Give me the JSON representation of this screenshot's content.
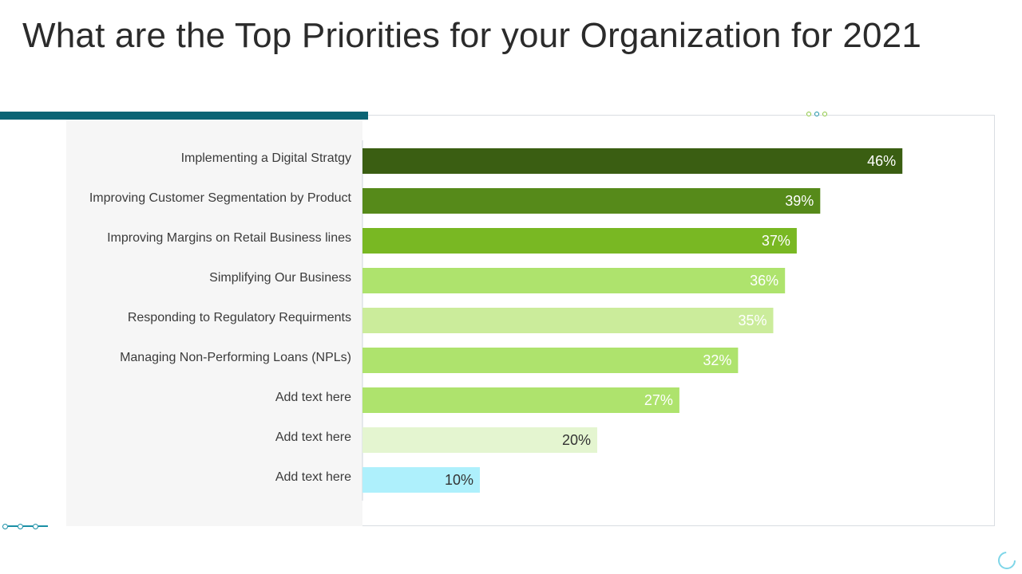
{
  "page": {
    "title": "What are the Top Priorities for your Organization for 2021"
  },
  "colors": {
    "accent": "#0b6474",
    "top_dots": [
      "#8cc63f",
      "#1a8fa6",
      "#8cc63f"
    ],
    "bottom_dots": "#1a8fa6"
  },
  "chart_data": {
    "type": "bar",
    "orientation": "horizontal",
    "categories": [
      "Implementing a Digital Stratgy",
      "Improving Customer Segmentation by Product",
      "Improving Margins on Retail Business lines",
      "Simplifying Our Business",
      "Responding to Regulatory Requirments",
      "Managing Non-Performing Loans (NPLs)",
      "Add text here",
      "Add text here",
      "Add text here"
    ],
    "values": [
      46,
      39,
      37,
      36,
      35,
      32,
      27,
      20,
      10
    ],
    "value_labels": [
      "46%",
      "39%",
      "37%",
      "36%",
      "35%",
      "32%",
      "27%",
      "20%",
      "10%"
    ],
    "bar_colors": [
      "#3a5e12",
      "#568a1a",
      "#79b823",
      "#aee36d",
      "#cbec9b",
      "#aee36d",
      "#aee36d",
      "#e4f5d0",
      "#aef0fc"
    ],
    "label_colors": [
      "#ffffff",
      "#ffffff",
      "#ffffff",
      "#ffffff",
      "#ffffff",
      "#ffffff",
      "#ffffff",
      "#333333",
      "#333333"
    ],
    "xlim": [
      0,
      50
    ],
    "grid": false,
    "legend": "none"
  }
}
